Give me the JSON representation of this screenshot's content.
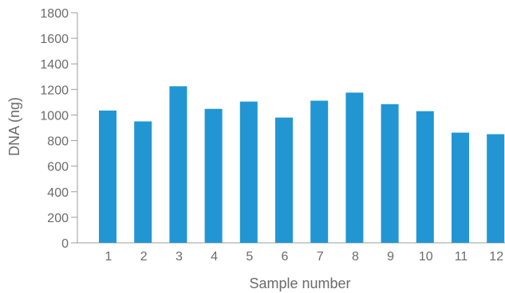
{
  "chart_data": {
    "type": "bar",
    "title": "",
    "xlabel": "Sample number",
    "ylabel": "DNA (ng)",
    "categories": [
      "1",
      "2",
      "3",
      "4",
      "5",
      "6",
      "7",
      "8",
      "9",
      "10",
      "11",
      "12"
    ],
    "values": [
      1035,
      950,
      1225,
      1048,
      1105,
      980,
      1112,
      1175,
      1085,
      1030,
      862,
      850
    ],
    "ylim": [
      0,
      1800
    ],
    "yticks": [
      0,
      200,
      400,
      600,
      800,
      1000,
      1200,
      1400,
      1600,
      1800
    ],
    "grid": false,
    "legend": "none",
    "bar_color": "#2196d3",
    "axis_color": "#9e9e9e"
  }
}
